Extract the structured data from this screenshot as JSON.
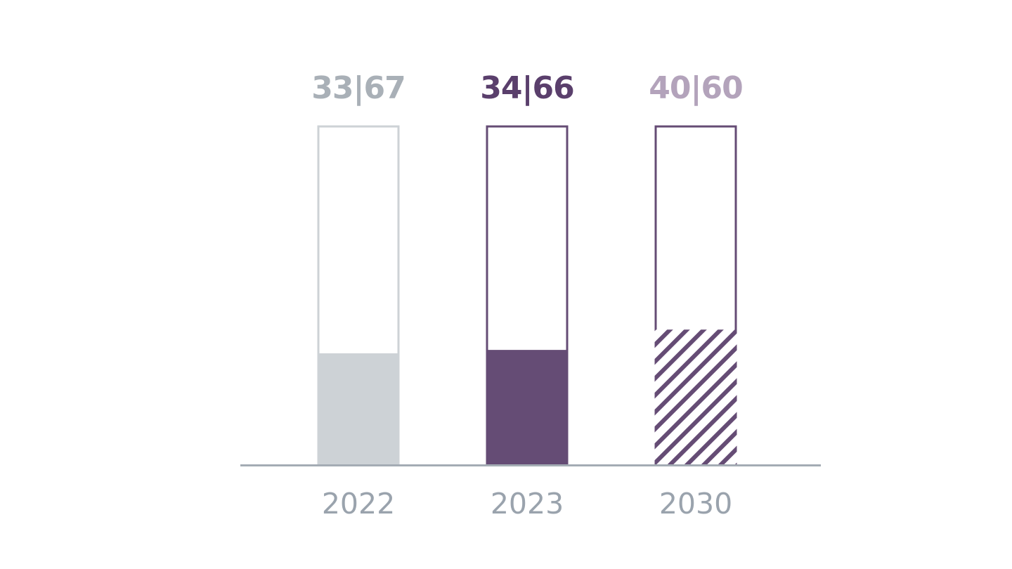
{
  "chart_data": {
    "type": "bar",
    "categories": [
      "2022",
      "2023",
      "2030"
    ],
    "bars": [
      {
        "category": "2022",
        "label": "33|67",
        "filled_share": 33,
        "fill_style": "solid",
        "fill_color": "#cdd2d6",
        "outline_color": "#cdd2d6",
        "label_color": "#a9b0b7"
      },
      {
        "category": "2023",
        "label": "34|66",
        "filled_share": 34,
        "fill_style": "solid",
        "fill_color": "#654c75",
        "outline_color": "#654c75",
        "label_color": "#5a3f6c"
      },
      {
        "category": "2030",
        "label": "40|60",
        "filled_share": 40,
        "fill_style": "hatched",
        "fill_color": "#654c75",
        "outline_color": "#654c75",
        "label_color": "#b3a3bb"
      }
    ],
    "ylim": [
      0,
      100
    ],
    "title": "",
    "xlabel": "",
    "ylabel": "",
    "grid": false,
    "baseline_color": "#a4acb4"
  }
}
